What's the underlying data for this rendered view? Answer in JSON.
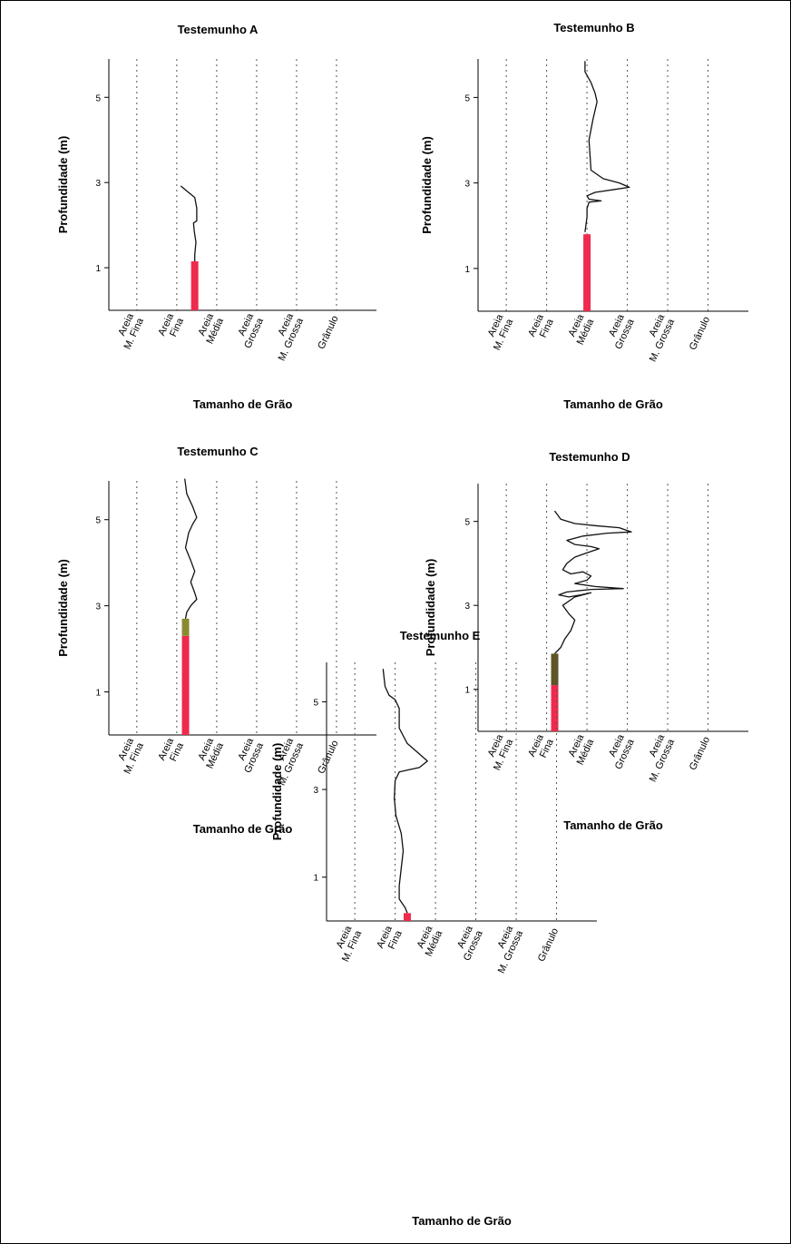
{
  "chart_data": [
    {
      "type": "line",
      "title": "Testemunho A",
      "xlabel": "Tamanho de Grão",
      "ylabel": "Profundidade (m)",
      "categories": [
        "Areia M. Fina",
        "Areia Fina",
        "Areia Média",
        "Areia Grossa",
        "Areia M. Grossa",
        "Grânulo"
      ],
      "yticks": [
        1,
        3,
        5
      ],
      "ylim": [
        0,
        5.9
      ],
      "xlim": [
        -0.7,
        6
      ],
      "grid": "vertical dotted",
      "series": [
        {
          "values": [
            [
              1.1,
              2.92
            ],
            [
              1.25,
              2.8
            ],
            [
              1.45,
              2.65
            ],
            [
              1.5,
              2.4
            ],
            [
              1.5,
              2.1
            ],
            [
              1.42,
              2.05
            ],
            [
              1.44,
              1.85
            ],
            [
              1.48,
              1.6
            ],
            [
              1.45,
              1.3
            ],
            [
              1.45,
              1.15
            ]
          ]
        }
      ],
      "segments": [
        {
          "x": 1.45,
          "from": 0,
          "to": 1.15,
          "color": "#ee2a4d"
        }
      ]
    },
    {
      "type": "line",
      "title": "Testemunho B",
      "xlabel": "Tamanho de Grão",
      "ylabel": "Profundidade (m)",
      "categories": [
        "Areia M. Fina",
        "Areia Fina",
        "Areia Média",
        "Areia Grossa",
        "Areia M. Grossa",
        "Grânulo"
      ],
      "yticks": [
        1,
        3,
        5
      ],
      "ylim": [
        0,
        5.9
      ],
      "xlim": [
        -0.7,
        6
      ],
      "grid": "vertical dotted",
      "series": [
        {
          "values": [
            [
              1.95,
              5.85
            ],
            [
              1.95,
              5.6
            ],
            [
              2.1,
              5.35
            ],
            [
              2.2,
              5.1
            ],
            [
              2.25,
              4.9
            ],
            [
              2.15,
              4.5
            ],
            [
              2.05,
              4.0
            ],
            [
              2.08,
              3.6
            ],
            [
              2.1,
              3.3
            ],
            [
              2.4,
              3.1
            ],
            [
              2.8,
              3.0
            ],
            [
              3.05,
              2.9
            ],
            [
              2.7,
              2.85
            ],
            [
              2.2,
              2.78
            ],
            [
              2.0,
              2.7
            ],
            [
              2.05,
              2.62
            ],
            [
              2.35,
              2.58
            ],
            [
              2.05,
              2.55
            ],
            [
              2.0,
              2.4
            ],
            [
              2.0,
              2.2
            ],
            [
              1.95,
              1.85
            ]
          ]
        }
      ],
      "segments": [
        {
          "x": 2.0,
          "from": 0,
          "to": 1.8,
          "color": "#ee2a4d"
        }
      ]
    },
    {
      "type": "line",
      "title": "Testemunho C",
      "xlabel": "Tamanho de Grão",
      "ylabel": "Profundidade (m)",
      "categories": [
        "Areia M. Fina",
        "Areia Fina",
        "Areia Média",
        "Areia Grossa",
        "Areia M. Grossa",
        "Grânulo"
      ],
      "yticks": [
        1,
        3,
        5
      ],
      "ylim": [
        0,
        5.9
      ],
      "xlim": [
        -0.7,
        6
      ],
      "grid": "vertical dotted",
      "series": [
        {
          "values": [
            [
              1.2,
              5.95
            ],
            [
              1.25,
              5.6
            ],
            [
              1.4,
              5.3
            ],
            [
              1.5,
              5.05
            ],
            [
              1.4,
              4.9
            ],
            [
              1.3,
              4.7
            ],
            [
              1.22,
              4.35
            ],
            [
              1.35,
              4.05
            ],
            [
              1.45,
              3.8
            ],
            [
              1.35,
              3.55
            ],
            [
              1.45,
              3.3
            ],
            [
              1.5,
              3.15
            ],
            [
              1.35,
              3.0
            ],
            [
              1.25,
              2.85
            ],
            [
              1.22,
              2.7
            ]
          ]
        }
      ],
      "segments": [
        {
          "x": 1.22,
          "from": 0,
          "to": 2.3,
          "color": "#ee2a4d"
        },
        {
          "x": 1.22,
          "from": 2.3,
          "to": 2.7,
          "color": "#8a8a32"
        }
      ]
    },
    {
      "type": "line",
      "title": "Testemunho D",
      "xlabel": "Tamanho de Grão",
      "ylabel": "Profundidade (m)",
      "categories": [
        "Areia M. Fina",
        "Areia Fina",
        "Areia Média",
        "Areia Grossa",
        "Areia M. Grossa",
        "Grânulo"
      ],
      "yticks": [
        1,
        3,
        5
      ],
      "ylim": [
        0,
        5.9
      ],
      "xlim": [
        -0.7,
        6
      ],
      "grid": "vertical dotted",
      "series": [
        {
          "values": [
            [
              1.2,
              5.25
            ],
            [
              1.35,
              5.05
            ],
            [
              1.7,
              4.95
            ],
            [
              2.2,
              4.9
            ],
            [
              2.8,
              4.85
            ],
            [
              3.1,
              4.75
            ],
            [
              2.5,
              4.72
            ],
            [
              1.9,
              4.65
            ],
            [
              1.5,
              4.55
            ],
            [
              1.7,
              4.45
            ],
            [
              2.1,
              4.4
            ],
            [
              2.3,
              4.35
            ],
            [
              2.0,
              4.25
            ],
            [
              1.7,
              4.15
            ],
            [
              1.5,
              4.0
            ],
            [
              1.4,
              3.85
            ],
            [
              1.6,
              3.75
            ],
            [
              1.9,
              3.8
            ],
            [
              2.1,
              3.7
            ],
            [
              2.0,
              3.6
            ],
            [
              1.7,
              3.52
            ],
            [
              2.2,
              3.45
            ],
            [
              2.9,
              3.4
            ],
            [
              2.1,
              3.38
            ],
            [
              1.5,
              3.32
            ],
            [
              1.3,
              3.25
            ],
            [
              1.55,
              3.2
            ],
            [
              1.85,
              3.25
            ],
            [
              2.1,
              3.3
            ],
            [
              1.7,
              3.2
            ],
            [
              1.4,
              3.0
            ],
            [
              1.55,
              2.8
            ],
            [
              1.7,
              2.65
            ],
            [
              1.6,
              2.4
            ],
            [
              1.45,
              2.2
            ],
            [
              1.35,
              2.0
            ],
            [
              1.2,
              1.85
            ]
          ]
        }
      ],
      "segments": [
        {
          "x": 1.2,
          "from": 0,
          "to": 1.1,
          "color": "#ee2a4d"
        },
        {
          "x": 1.2,
          "from": 1.1,
          "to": 1.85,
          "color": "#5f5527"
        }
      ]
    },
    {
      "type": "line",
      "title": "Testemunho E",
      "xlabel": "Tamanho de Grão",
      "ylabel": "Profundidade (m)",
      "categories": [
        "Areia M. Fina",
        "Areia Fina",
        "Areia Média",
        "Areia Grossa",
        "Areia M. Grossa",
        "Grânulo"
      ],
      "yticks": [
        1,
        3,
        5
      ],
      "ylim": [
        0,
        5.9
      ],
      "xlim": [
        -0.7,
        6
      ],
      "grid": "vertical dotted",
      "series": [
        {
          "values": [
            [
              0.7,
              5.75
            ],
            [
              0.75,
              5.35
            ],
            [
              0.85,
              5.15
            ],
            [
              1.0,
              5.05
            ],
            [
              1.1,
              4.85
            ],
            [
              1.1,
              4.4
            ],
            [
              1.3,
              4.05
            ],
            [
              1.55,
              3.85
            ],
            [
              1.8,
              3.65
            ],
            [
              1.6,
              3.5
            ],
            [
              1.35,
              3.45
            ],
            [
              1.1,
              3.4
            ],
            [
              1.0,
              3.2
            ],
            [
              0.98,
              2.8
            ],
            [
              1.02,
              2.4
            ],
            [
              1.15,
              2.0
            ],
            [
              1.2,
              1.6
            ],
            [
              1.15,
              1.2
            ],
            [
              1.1,
              0.8
            ],
            [
              1.1,
              0.5
            ],
            [
              1.25,
              0.3
            ],
            [
              1.3,
              0.18
            ]
          ]
        }
      ],
      "segments": [
        {
          "x": 1.3,
          "from": 0,
          "to": 0.18,
          "color": "#ee2a4d"
        }
      ]
    }
  ]
}
